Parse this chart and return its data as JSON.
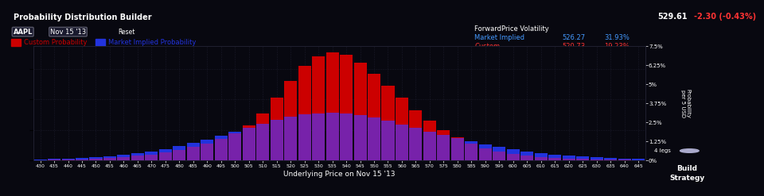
{
  "title_bar": "Probability Distribution Builder",
  "ticker": "AAPL",
  "date": "Nov 15 '13",
  "price": "529.61",
  "price_change": "-2.30 (-0.43%)",
  "legend_custom": "Custom Probability",
  "legend_market": "Market Implied Probability",
  "fwd_price_vol_title": "ForwardPrice Volatility",
  "market_implied_label": "Market Implied",
  "market_implied_fwd": "526.27",
  "market_implied_vol": "31.93%",
  "custom_label": "Custom",
  "custom_fwd": "520.73",
  "custom_vol": "19.23%",
  "xlabel": "Underlying Price on Nov 15 '13",
  "ylabel": "Probability\nper 5 USD",
  "background_color": "#080810",
  "plot_bg_color": "#080810",
  "grid_color": "#1e1e2e",
  "bar_width": 4.6,
  "xmin": 430,
  "xmax": 645,
  "ymin": 0,
  "ymax": 0.075,
  "yticks": [
    0,
    0.0125,
    0.025,
    0.0375,
    0.05,
    0.0625,
    0.075
  ],
  "ytick_labels": [
    "0%",
    "1.25%",
    "2.5%",
    "3.75%",
    "5%",
    "6.25%",
    "7.5%"
  ],
  "xticks": [
    430,
    435,
    440,
    445,
    450,
    455,
    460,
    465,
    470,
    475,
    480,
    485,
    490,
    495,
    500,
    505,
    510,
    515,
    520,
    525,
    530,
    535,
    540,
    545,
    550,
    555,
    560,
    565,
    570,
    575,
    580,
    585,
    590,
    595,
    600,
    605,
    610,
    615,
    620,
    625,
    630,
    635,
    640,
    645
  ],
  "custom_color": "#cc0000",
  "market_color": "#2233dd",
  "overlap_color": "#7722aa",
  "custom_data": [
    0.0003,
    0.0004,
    0.0006,
    0.0008,
    0.001,
    0.0015,
    0.002,
    0.003,
    0.004,
    0.0055,
    0.007,
    0.009,
    0.011,
    0.014,
    0.018,
    0.023,
    0.031,
    0.041,
    0.052,
    0.062,
    0.068,
    0.071,
    0.069,
    0.064,
    0.057,
    0.049,
    0.041,
    0.033,
    0.026,
    0.02,
    0.015,
    0.011,
    0.008,
    0.006,
    0.0045,
    0.003,
    0.0022,
    0.0016,
    0.0012,
    0.0009,
    0.0007,
    0.0005,
    0.0004,
    0.0003
  ],
  "market_data": [
    0.0008,
    0.001,
    0.0013,
    0.0017,
    0.0022,
    0.0028,
    0.0036,
    0.0046,
    0.006,
    0.0075,
    0.0093,
    0.0113,
    0.0135,
    0.016,
    0.0186,
    0.0213,
    0.024,
    0.0265,
    0.0285,
    0.03,
    0.031,
    0.0315,
    0.031,
    0.0298,
    0.028,
    0.026,
    0.0237,
    0.0213,
    0.019,
    0.0167,
    0.0145,
    0.0124,
    0.0105,
    0.0088,
    0.0073,
    0.006,
    0.0049,
    0.004,
    0.0032,
    0.0026,
    0.002,
    0.0016,
    0.0012,
    0.001
  ],
  "header_bg": "#0d0d1a",
  "topbar_bg": "#0d0d1a",
  "price_color": "#ffffff",
  "price_change_color": "#ff3333",
  "price_change_bg": "#cc0000",
  "market_implied_text_color": "#4499ff",
  "custom_text_color": "#ff3333",
  "button_bg": "#2a2a3a",
  "legs_bg": "#1a1a2e"
}
